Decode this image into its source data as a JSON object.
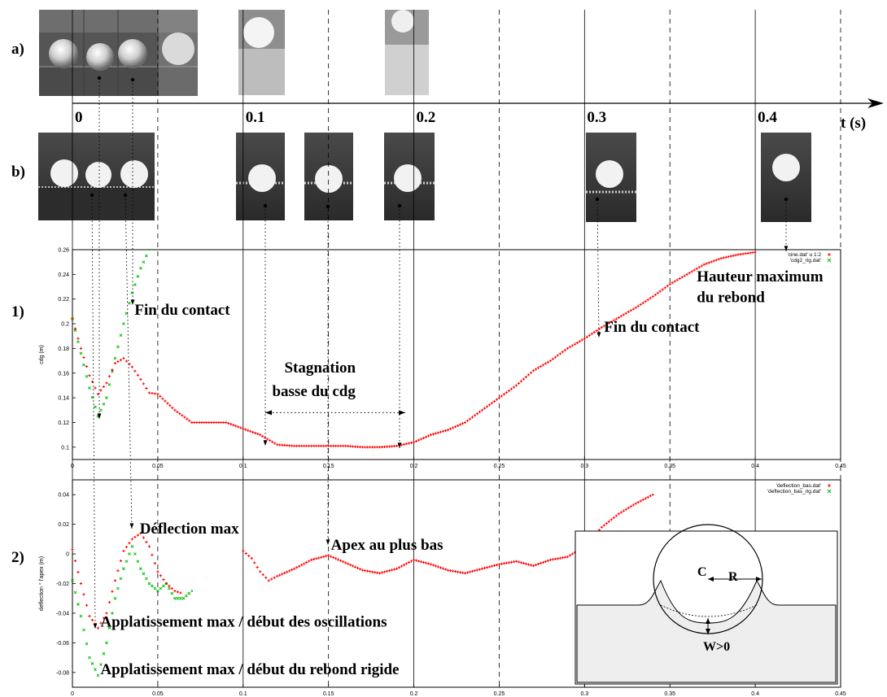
{
  "row_labels": {
    "a": "a)",
    "b": "b)",
    "p1": "1)",
    "p2": "2)"
  },
  "time_axis": {
    "label": "t (s)",
    "ticks": [
      "0",
      "0.1",
      "0.2",
      "0.3",
      "0.4"
    ]
  },
  "inset": {
    "center_label": "C",
    "radius_label": "R",
    "deflection_label": "W>0"
  },
  "colors": {
    "series_primary": "#ff0000",
    "series_rigid": "#00c000"
  },
  "chart_data": [
    {
      "type": "scatter",
      "ylabel": "cdg (m)",
      "xlim": [
        0,
        0.45
      ],
      "ylim": [
        0.09,
        0.26
      ],
      "xticks": [
        "0",
        "0.05",
        "0.1",
        "0.15",
        "0.2",
        "0.25",
        "0.3",
        "0.35",
        "0.4",
        "0.45"
      ],
      "yticks": [
        "0.1",
        "0.12",
        "0.14",
        "0.16",
        "0.18",
        "0.2",
        "0.22",
        "0.24",
        "0.26"
      ],
      "legend_position": "top-right",
      "series": [
        {
          "name": "'cine.dat' u 1:2",
          "x": [
            0,
            0.005,
            0.01,
            0.015,
            0.02,
            0.025,
            0.03,
            0.035,
            0.04,
            0.045,
            0.05,
            0.06,
            0.07,
            0.08,
            0.09,
            0.1,
            0.11,
            0.12,
            0.13,
            0.14,
            0.15,
            0.16,
            0.17,
            0.18,
            0.19,
            0.2,
            0.21,
            0.22,
            0.23,
            0.24,
            0.25,
            0.26,
            0.27,
            0.28,
            0.29,
            0.3,
            0.31,
            0.32,
            0.33,
            0.34,
            0.35,
            0.36,
            0.37,
            0.38,
            0.39,
            0.4
          ],
          "y": [
            0.204,
            0.18,
            0.158,
            0.143,
            0.152,
            0.168,
            0.172,
            0.165,
            0.155,
            0.144,
            0.143,
            0.13,
            0.12,
            0.12,
            0.12,
            0.115,
            0.11,
            0.102,
            0.101,
            0.101,
            0.101,
            0.101,
            0.1,
            0.1,
            0.101,
            0.104,
            0.11,
            0.114,
            0.12,
            0.13,
            0.14,
            0.15,
            0.162,
            0.17,
            0.18,
            0.188,
            0.197,
            0.205,
            0.213,
            0.222,
            0.232,
            0.24,
            0.248,
            0.253,
            0.256,
            0.258
          ]
        },
        {
          "name": "'cdg2_rig.dat'",
          "x": [
            0,
            0.005,
            0.01,
            0.015,
            0.02,
            0.025,
            0.03,
            0.035,
            0.04,
            0.045
          ],
          "y": [
            0.204,
            0.176,
            0.148,
            0.125,
            0.14,
            0.172,
            0.2,
            0.225,
            0.245,
            0.26
          ]
        }
      ],
      "annotations": [
        {
          "text": "Fin du contact",
          "x": 0.035,
          "y": 0.21
        },
        {
          "text": "Hauteur maximum",
          "x": 0.36,
          "y": 0.237
        },
        {
          "text": "du rebond",
          "x": 0.36,
          "y": 0.22
        },
        {
          "text": "Fin du contact",
          "x": 0.31,
          "y": 0.196
        },
        {
          "text": "Stagnation",
          "x": 0.117,
          "y": 0.163
        },
        {
          "text": "basse du cdg",
          "x": 0.117,
          "y": 0.144
        }
      ]
    },
    {
      "type": "scatter",
      "ylabel": "deflection ° l'apex (m)",
      "xlim": [
        0,
        0.45
      ],
      "ylim": [
        -0.09,
        0.05
      ],
      "xticks": [
        "0",
        "0.05",
        "0.1",
        "0.15",
        "0.2",
        "0.25",
        "0.3",
        "0.35",
        "0.4",
        "0.45"
      ],
      "yticks": [
        "-0.08",
        "-0.06",
        "-0.04",
        "-0.02",
        "0",
        "0.02",
        "0.04"
      ],
      "legend_position": "top-right",
      "series": [
        {
          "name": "'deflection_bas.dat'",
          "x": [
            0,
            0.005,
            0.01,
            0.015,
            0.02,
            0.025,
            0.03,
            0.035,
            0.04,
            0.045,
            0.05,
            0.055,
            0.06,
            0.065,
            0.1,
            0.105,
            0.11,
            0.115,
            0.12,
            0.13,
            0.14,
            0.15,
            0.16,
            0.17,
            0.18,
            0.19,
            0.2,
            0.21,
            0.22,
            0.23,
            0.24,
            0.25,
            0.26,
            0.27,
            0.28,
            0.29,
            0.3,
            0.31,
            0.32,
            0.33,
            0.34
          ],
          "y": [
            0.003,
            -0.02,
            -0.042,
            -0.05,
            -0.04,
            -0.018,
            0.002,
            0.01,
            0.014,
            0.005,
            -0.012,
            -0.02,
            -0.025,
            -0.027,
            0.002,
            -0.003,
            -0.012,
            -0.018,
            -0.015,
            -0.01,
            -0.004,
            -0.001,
            -0.006,
            -0.011,
            -0.013,
            -0.01,
            -0.004,
            -0.007,
            -0.011,
            -0.013,
            -0.01,
            -0.007,
            -0.005,
            -0.008,
            -0.004,
            -0.002,
            0.005,
            0.018,
            0.027,
            0.034,
            0.04
          ]
        },
        {
          "name": "'deflection_bas_rig.dat'",
          "x": [
            0,
            0.005,
            0.01,
            0.015,
            0.02,
            0.025,
            0.03,
            0.035,
            0.04,
            0.045,
            0.05,
            0.055,
            0.06,
            0.065,
            0.07
          ],
          "y": [
            -0.018,
            -0.042,
            -0.07,
            -0.082,
            -0.06,
            -0.03,
            -0.01,
            0.005,
            -0.01,
            -0.02,
            -0.025,
            -0.02,
            -0.03,
            -0.03,
            -0.025
          ]
        }
      ],
      "annotations": [
        {
          "text": "Déflection max",
          "x": 0.038,
          "y": 0.016
        },
        {
          "text": "Apex au plus bas",
          "x": 0.15,
          "y": 0.005
        },
        {
          "text": "Applatissement max  / début des oscillations",
          "x": 0.015,
          "y": -0.047
        },
        {
          "text": "Applatissement max  / début du rebond rigide",
          "x": 0.015,
          "y": -0.079
        }
      ]
    }
  ]
}
